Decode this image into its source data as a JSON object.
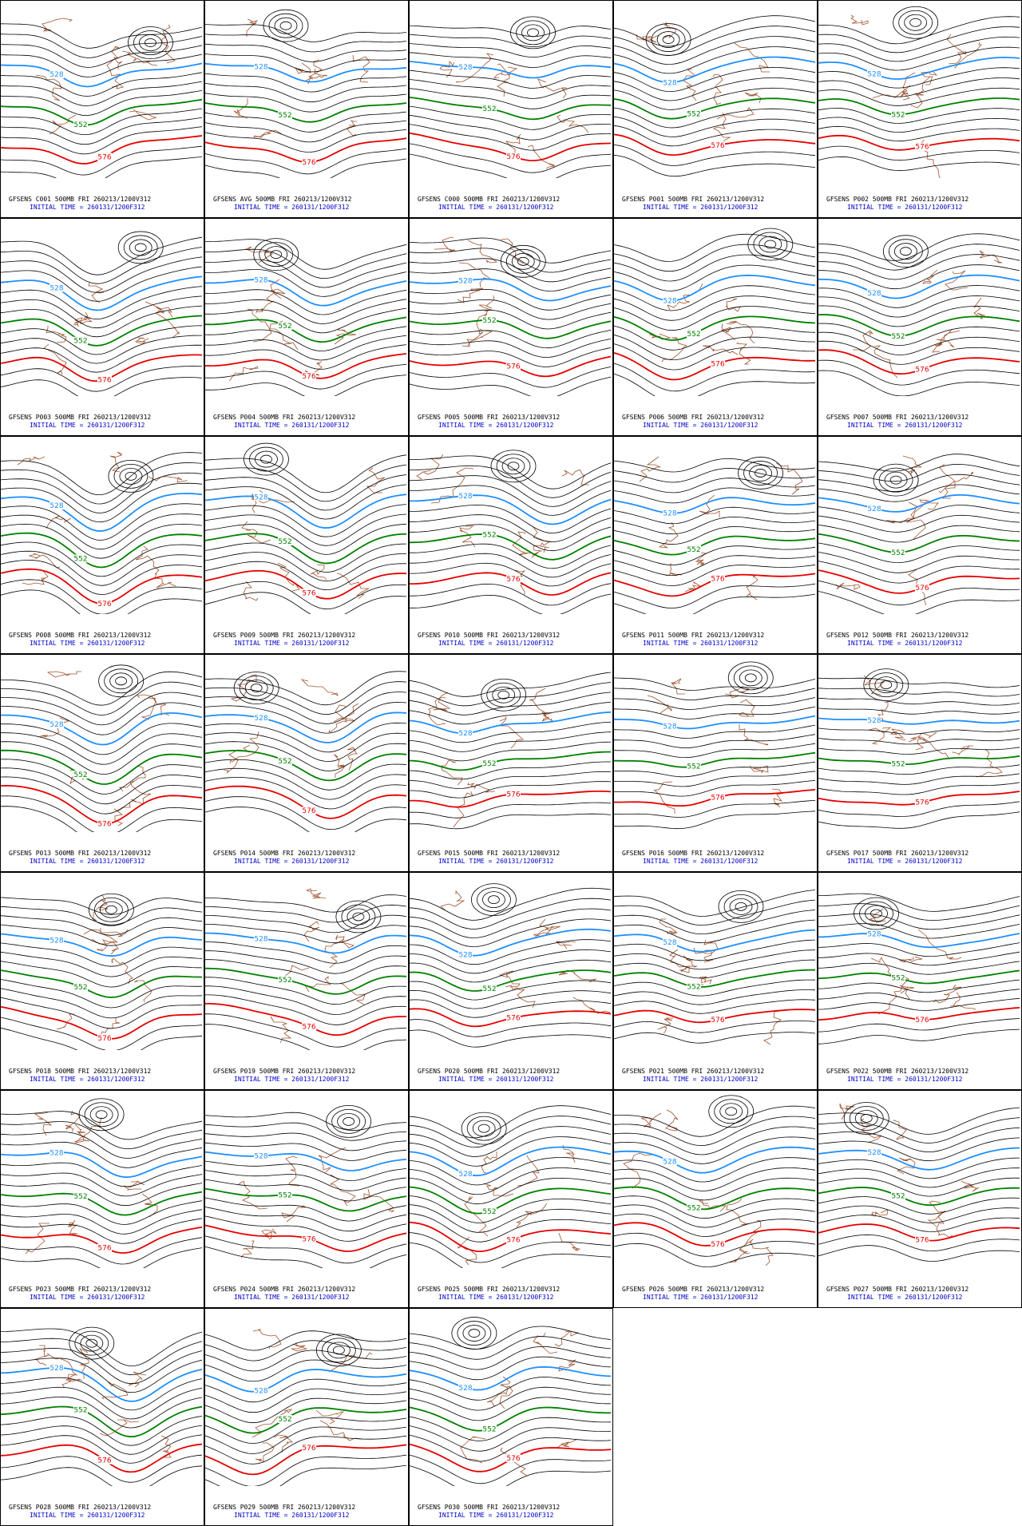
{
  "contour_colors": [
    "#1e8fff",
    "#008000",
    "#e60000"
  ],
  "panels": [
    {
      "title": "GFSENS C001 500MB FRI 260213/1200V312",
      "init": "INITIAL TIME = 260131/1200F312",
      "contours": [
        "528",
        "552",
        "576"
      ]
    },
    {
      "title": "GFSENS AVG 500MB FRI 260213/1200V312",
      "init": "INITIAL TIME = 260131/1200F312",
      "contours": [
        "528",
        "552",
        "576"
      ]
    },
    {
      "title": "GFSENS C000 500MB FRI 260213/1200V312",
      "init": "INITIAL TIME = 260131/1200F312",
      "contours": [
        "528",
        "552",
        "576"
      ]
    },
    {
      "title": "GFSENS P001 500MB FRI 260213/1200V312",
      "init": "INITIAL TIME = 260131/1200F312",
      "contours": [
        "528",
        "552",
        "576"
      ]
    },
    {
      "title": "GFSENS P002 500MB FRI 260213/1200V312",
      "init": "INITIAL TIME = 260131/1200F312",
      "contours": [
        "528",
        "552",
        "576"
      ]
    },
    {
      "title": "GFSENS P003 500MB FRI 260213/1200V312",
      "init": "INITIAL TIME = 260131/1200F312",
      "contours": [
        "528",
        "552",
        "576"
      ]
    },
    {
      "title": "GFSENS P004 500MB FRI 260213/1200V312",
      "init": "INITIAL TIME = 260131/1200F312",
      "contours": [
        "528",
        "552",
        "576"
      ]
    },
    {
      "title": "GFSENS P005 500MB FRI 260213/1200V312",
      "init": "INITIAL TIME = 260131/1200F312",
      "contours": [
        "528",
        "552",
        "576"
      ]
    },
    {
      "title": "GFSENS P006 500MB FRI 260213/1200V312",
      "init": "INITIAL TIME = 260131/1200F312",
      "contours": [
        "528",
        "552",
        "576"
      ]
    },
    {
      "title": "GFSENS P007 500MB FRI 260213/1200V312",
      "init": "INITIAL TIME = 260131/1200F312",
      "contours": [
        "528",
        "552",
        "576"
      ]
    },
    {
      "title": "GFSENS P008 500MB FRI 260213/1200V312",
      "init": "INITIAL TIME = 260131/1200F312",
      "contours": [
        "528",
        "552",
        "576"
      ]
    },
    {
      "title": "GFSENS P009 500MB FRI 260213/1200V312",
      "init": "INITIAL TIME = 260131/1200F312",
      "contours": [
        "528",
        "552",
        "576"
      ]
    },
    {
      "title": "GFSENS P010 500MB FRI 260213/1200V312",
      "init": "INITIAL TIME = 260131/1200F312",
      "contours": [
        "528",
        "552",
        "576"
      ]
    },
    {
      "title": "GFSENS P011 500MB FRI 260213/1200V312",
      "init": "INITIAL TIME = 260131/1200F312",
      "contours": [
        "528",
        "552",
        "576"
      ]
    },
    {
      "title": "GFSENS P012 500MB FRI 260213/1200V312",
      "init": "INITIAL TIME = 260131/1200F312",
      "contours": [
        "528",
        "552",
        "576"
      ]
    },
    {
      "title": "GFSENS P013 500MB FRI 260213/1200V312",
      "init": "INITIAL TIME = 260131/1200F312",
      "contours": [
        "528",
        "552",
        "576"
      ]
    },
    {
      "title": "GFSENS P014 500MB FRI 260213/1200V312",
      "init": "INITIAL TIME = 260131/1200F312",
      "contours": [
        "528",
        "552",
        "576"
      ]
    },
    {
      "title": "GFSENS P015 500MB FRI 260213/1200V312",
      "init": "INITIAL TIME = 260131/1200F312",
      "contours": [
        "528",
        "552",
        "576"
      ]
    },
    {
      "title": "GFSENS P016 500MB FRI 260213/1200V312",
      "init": "INITIAL TIME = 260131/1200F312",
      "contours": [
        "528",
        "552",
        "576"
      ]
    },
    {
      "title": "GFSENS P017 500MB FRI 260213/1200V312",
      "init": "INITIAL TIME = 260131/1200F312",
      "contours": [
        "528",
        "552",
        "576"
      ]
    },
    {
      "title": "GFSENS P018 500MB FRI 260213/1200V312",
      "init": "INITIAL TIME = 260131/1200F312",
      "contours": [
        "528",
        "552",
        "576"
      ]
    },
    {
      "title": "GFSENS P019 500MB FRI 260213/1200V312",
      "init": "INITIAL TIME = 260131/1200F312",
      "contours": [
        "528",
        "552",
        "576"
      ]
    },
    {
      "title": "GFSENS P020 500MB FRI 260213/1200V312",
      "init": "INITIAL TIME = 260131/1200F312",
      "contours": [
        "528",
        "552",
        "576"
      ]
    },
    {
      "title": "GFSENS P021 500MB FRI 260213/1200V312",
      "init": "INITIAL TIME = 260131/1200F312",
      "contours": [
        "528",
        "552",
        "576"
      ]
    },
    {
      "title": "GFSENS P022 500MB FRI 260213/1200V312",
      "init": "INITIAL TIME = 260131/1200F312",
      "contours": [
        "528",
        "552",
        "576"
      ]
    },
    {
      "title": "GFSENS P023 500MB FRI 260213/1200V312",
      "init": "INITIAL TIME = 260131/1200F312",
      "contours": [
        "528",
        "552",
        "576"
      ]
    },
    {
      "title": "GFSENS P024 500MB FRI 260213/1200V312",
      "init": "INITIAL TIME = 260131/1200F312",
      "contours": [
        "528",
        "552",
        "576"
      ]
    },
    {
      "title": "GFSENS P025 500MB FRI 260213/1200V312",
      "init": "INITIAL TIME = 260131/1200F312",
      "contours": [
        "528",
        "552",
        "576"
      ]
    },
    {
      "title": "GFSENS P026 500MB FRI 260213/1200V312",
      "init": "INITIAL TIME = 260131/1200F312",
      "contours": [
        "528",
        "552",
        "576"
      ]
    },
    {
      "title": "GFSENS P027 500MB FRI 260213/1200V312",
      "init": "INITIAL TIME = 260131/1200F312",
      "contours": [
        "528",
        "552",
        "576"
      ]
    },
    {
      "title": "GFSENS P028 500MB FRI 260213/1200V312",
      "init": "INITIAL TIME = 260131/1200F312",
      "contours": [
        "528",
        "552",
        "576"
      ]
    },
    {
      "title": "GFSENS P029 500MB FRI 260213/1200V312",
      "init": "INITIAL TIME = 260131/1200F312",
      "contours": [
        "528",
        "552",
        "576"
      ]
    },
    {
      "title": "GFSENS P030 500MB FRI 260213/1200V312",
      "init": "INITIAL TIME = 260131/1200F312",
      "contours": [
        "528",
        "552",
        "576"
      ]
    }
  ]
}
